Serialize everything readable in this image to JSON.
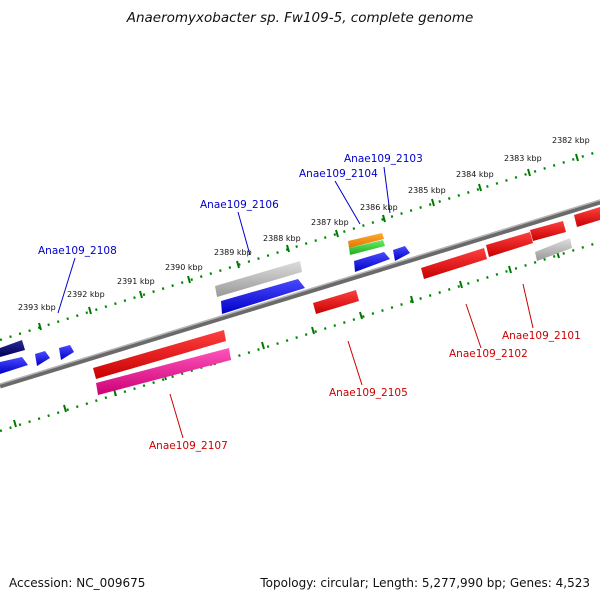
{
  "title": "Anaeromyxobacter sp. Fw109-5, complete genome",
  "footer": {
    "accession": "Accession: NC_009675",
    "topology": "Topology: circular; Length: 5,277,990 bp; Genes: 4,523"
  },
  "kbp_labels": [
    "2382 kbp",
    "2383 kbp",
    "2384 kbp",
    "2385 kbp",
    "2386 kbp",
    "2387 kbp",
    "2388 kbp",
    "2389 kbp",
    "2390 kbp",
    "2391 kbp",
    "2392 kbp",
    "2393 kbp"
  ],
  "genes_top": [
    {
      "name": "Anae109_2103",
      "color": "#0000cc"
    },
    {
      "name": "Anae109_2104",
      "color": "#0000cc"
    },
    {
      "name": "Anae109_2106",
      "color": "#0000cc"
    },
    {
      "name": "Anae109_2108",
      "color": "#0000cc"
    }
  ],
  "genes_bottom": [
    {
      "name": "Anae109_2101",
      "color": "#cc0000"
    },
    {
      "name": "Anae109_2102",
      "color": "#cc0000"
    },
    {
      "name": "Anae109_2105",
      "color": "#cc0000"
    },
    {
      "name": "Anae109_2107",
      "color": "#cc0000"
    }
  ],
  "colors": {
    "forward_cds": "#0000ee",
    "reverse_cds": "#ee0000",
    "pseudo": "#aaaaaa",
    "rna": "#ee1188",
    "dark_cds": "#000077",
    "tick": "#007700",
    "backbone": "#888888"
  }
}
